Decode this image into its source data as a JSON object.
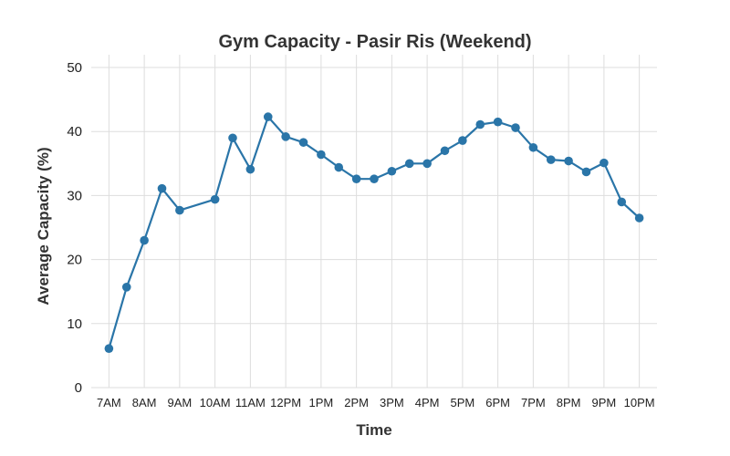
{
  "chart_data": {
    "type": "line",
    "title": "Gym Capacity - Pasir Ris (Weekend)",
    "xlabel": "Time",
    "ylabel": "Average Capacity (%)",
    "ylim": [
      0,
      52
    ],
    "yticks": [
      0,
      10,
      20,
      30,
      40,
      50
    ],
    "xlim": [
      6.5,
      22.5
    ],
    "xticks": [
      {
        "x": 7,
        "label": "7AM"
      },
      {
        "x": 8,
        "label": "8AM"
      },
      {
        "x": 9,
        "label": "9AM"
      },
      {
        "x": 10,
        "label": "10AM"
      },
      {
        "x": 11,
        "label": "11AM"
      },
      {
        "x": 12,
        "label": "12PM"
      },
      {
        "x": 13,
        "label": "1PM"
      },
      {
        "x": 14,
        "label": "2PM"
      },
      {
        "x": 15,
        "label": "3PM"
      },
      {
        "x": 16,
        "label": "4PM"
      },
      {
        "x": 17,
        "label": "5PM"
      },
      {
        "x": 18,
        "label": "6PM"
      },
      {
        "x": 19,
        "label": "7PM"
      },
      {
        "x": 20,
        "label": "8PM"
      },
      {
        "x": 21,
        "label": "9PM"
      },
      {
        "x": 22,
        "label": "10PM"
      }
    ],
    "grid": true,
    "color": "#2a75a8",
    "series": [
      {
        "x": [
          7.0,
          7.5,
          8.0,
          8.5,
          9.0,
          10.0,
          10.5,
          11.0,
          11.5,
          12.0,
          12.5,
          13.0,
          13.5,
          14.0,
          14.5,
          15.0,
          15.5,
          16.0,
          16.5,
          17.0,
          17.5,
          18.0,
          18.5,
          19.0,
          19.5,
          20.0,
          20.5,
          21.0,
          21.5,
          22.0
        ],
        "y": [
          6.1,
          15.7,
          23.0,
          31.1,
          27.7,
          29.4,
          39.0,
          34.1,
          42.3,
          39.2,
          38.3,
          36.4,
          34.4,
          32.6,
          32.6,
          33.8,
          35.0,
          35.0,
          37.0,
          38.6,
          41.1,
          41.5,
          40.6,
          37.5,
          35.6,
          35.4,
          33.7,
          35.1,
          29.0,
          26.5
        ]
      }
    ]
  }
}
